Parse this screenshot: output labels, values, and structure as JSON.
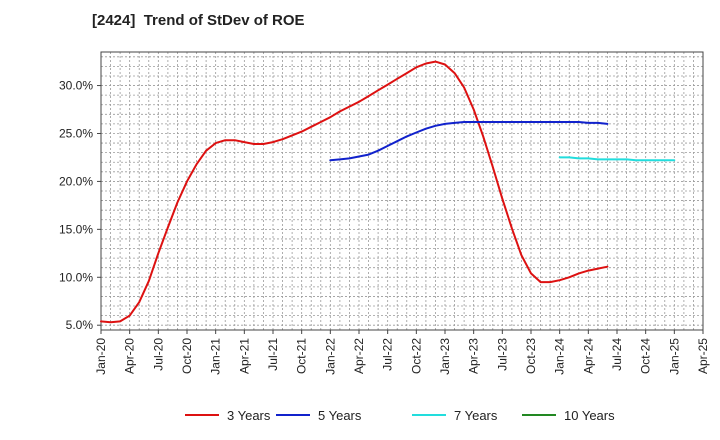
{
  "chart_data": {
    "type": "line",
    "title": "[2424]  Trend of StDev of ROE",
    "xlabel": "",
    "ylabel": "",
    "x_ticks": [
      "Jan-20",
      "Apr-20",
      "Jul-20",
      "Oct-20",
      "Jan-21",
      "Apr-21",
      "Jul-21",
      "Oct-21",
      "Jan-22",
      "Apr-22",
      "Jul-22",
      "Oct-22",
      "Jan-23",
      "Apr-23",
      "Jul-23",
      "Oct-23",
      "Jan-24",
      "Apr-24",
      "Jul-24",
      "Oct-24",
      "Jan-25",
      "Apr-25"
    ],
    "y_ticks": [
      "5.0%",
      "10.0%",
      "15.0%",
      "20.0%",
      "25.0%",
      "30.0%"
    ],
    "ylim": [
      4.5,
      33.5
    ],
    "grid": true,
    "legend_position": "bottom",
    "series": [
      {
        "name": "3 Years",
        "color": "#dd1111",
        "points": [
          [
            "Jan-20",
            5.4
          ],
          [
            "Feb-20",
            5.3
          ],
          [
            "Mar-20",
            5.4
          ],
          [
            "Apr-20",
            6.0
          ],
          [
            "May-20",
            7.4
          ],
          [
            "Jun-20",
            9.6
          ],
          [
            "Jul-20",
            12.5
          ],
          [
            "Aug-20",
            15.2
          ],
          [
            "Sep-20",
            17.8
          ],
          [
            "Oct-20",
            20.0
          ],
          [
            "Nov-20",
            21.8
          ],
          [
            "Dec-20",
            23.2
          ],
          [
            "Jan-21",
            24.0
          ],
          [
            "Feb-21",
            24.3
          ],
          [
            "Mar-21",
            24.3
          ],
          [
            "Apr-21",
            24.1
          ],
          [
            "May-21",
            23.9
          ],
          [
            "Jun-21",
            23.9
          ],
          [
            "Jul-21",
            24.1
          ],
          [
            "Aug-21",
            24.4
          ],
          [
            "Sep-21",
            24.8
          ],
          [
            "Oct-21",
            25.2
          ],
          [
            "Nov-21",
            25.7
          ],
          [
            "Dec-21",
            26.2
          ],
          [
            "Jan-22",
            26.7
          ],
          [
            "Feb-22",
            27.3
          ],
          [
            "Mar-22",
            27.8
          ],
          [
            "Apr-22",
            28.3
          ],
          [
            "May-22",
            28.9
          ],
          [
            "Jun-22",
            29.5
          ],
          [
            "Jul-22",
            30.1
          ],
          [
            "Aug-22",
            30.7
          ],
          [
            "Sep-22",
            31.3
          ],
          [
            "Oct-22",
            31.9
          ],
          [
            "Nov-22",
            32.3
          ],
          [
            "Dec-22",
            32.5
          ],
          [
            "Jan-23",
            32.2
          ],
          [
            "Feb-23",
            31.3
          ],
          [
            "Mar-23",
            29.8
          ],
          [
            "Apr-23",
            27.5
          ],
          [
            "May-23",
            24.7
          ],
          [
            "Jun-23",
            21.5
          ],
          [
            "Jul-23",
            18.2
          ],
          [
            "Aug-23",
            15.1
          ],
          [
            "Sep-23",
            12.3
          ],
          [
            "Oct-23",
            10.4
          ],
          [
            "Nov-23",
            9.5
          ],
          [
            "Dec-23",
            9.5
          ],
          [
            "Jan-24",
            9.7
          ],
          [
            "Feb-24",
            10.0
          ],
          [
            "Mar-24",
            10.4
          ],
          [
            "Apr-24",
            10.7
          ],
          [
            "May-24",
            10.9
          ],
          [
            "Jun-24",
            11.1
          ]
        ]
      },
      {
        "name": "5 Years",
        "color": "#1122cc",
        "points": [
          [
            "Jan-22",
            22.2
          ],
          [
            "Feb-22",
            22.3
          ],
          [
            "Mar-22",
            22.4
          ],
          [
            "Apr-22",
            22.6
          ],
          [
            "May-22",
            22.8
          ],
          [
            "Jun-22",
            23.2
          ],
          [
            "Jul-22",
            23.7
          ],
          [
            "Aug-22",
            24.2
          ],
          [
            "Sep-22",
            24.7
          ],
          [
            "Oct-22",
            25.1
          ],
          [
            "Nov-22",
            25.5
          ],
          [
            "Dec-22",
            25.8
          ],
          [
            "Jan-23",
            26.0
          ],
          [
            "Feb-23",
            26.1
          ],
          [
            "Mar-23",
            26.2
          ],
          [
            "Apr-23",
            26.2
          ],
          [
            "May-23",
            26.2
          ],
          [
            "Jun-23",
            26.2
          ],
          [
            "Jul-23",
            26.2
          ],
          [
            "Aug-23",
            26.2
          ],
          [
            "Sep-23",
            26.2
          ],
          [
            "Oct-23",
            26.2
          ],
          [
            "Nov-23",
            26.2
          ],
          [
            "Dec-23",
            26.2
          ],
          [
            "Jan-24",
            26.2
          ],
          [
            "Feb-24",
            26.2
          ],
          [
            "Mar-24",
            26.2
          ],
          [
            "Apr-24",
            26.1
          ],
          [
            "May-24",
            26.1
          ],
          [
            "Jun-24",
            26.0
          ]
        ]
      },
      {
        "name": "7 Years",
        "color": "#22dddd",
        "points": [
          [
            "Jan-24",
            22.5
          ],
          [
            "Feb-24",
            22.5
          ],
          [
            "Mar-24",
            22.4
          ],
          [
            "Apr-24",
            22.4
          ],
          [
            "May-24",
            22.3
          ],
          [
            "Jun-24",
            22.3
          ],
          [
            "Jul-24",
            22.3
          ],
          [
            "Aug-24",
            22.3
          ],
          [
            "Sep-24",
            22.2
          ],
          [
            "Oct-24",
            22.2
          ],
          [
            "Nov-24",
            22.2
          ],
          [
            "Dec-24",
            22.2
          ],
          [
            "Jan-25",
            22.2
          ]
        ]
      },
      {
        "name": "10 Years",
        "color": "#228822",
        "points": []
      }
    ]
  }
}
